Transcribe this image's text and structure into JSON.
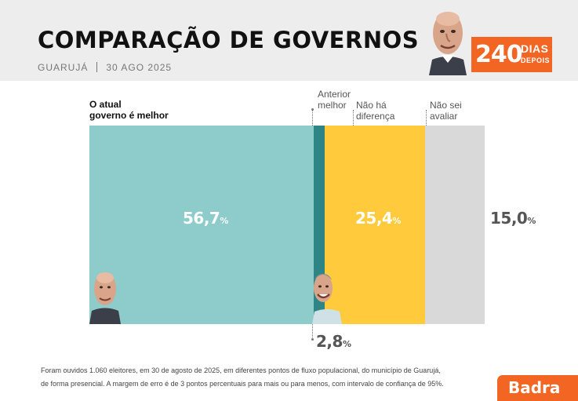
{
  "header": {
    "title": "COMPARAÇÃO DE GOVERNOS",
    "location": "GUARUJÁ",
    "date": "30 AGO 2025",
    "badge_number": "240",
    "badge_line1": "DIAS",
    "badge_line2": "DEPOIS"
  },
  "chart_data": {
    "type": "bar",
    "orientation": "stacked-horizontal",
    "categories": [
      "O atual governo é melhor",
      "Anterior melhor",
      "Não há diferença",
      "Não sei avaliar"
    ],
    "values": [
      56.7,
      2.8,
      25.4,
      15.0
    ],
    "unit": "%",
    "colors": [
      "#8ecbcb",
      "#2e8585",
      "#ffcb3c",
      "#d9d9d9"
    ]
  },
  "labels": {
    "cat0": "O atual\ngoverno é melhor",
    "cat1": "Anterior\nmelhor",
    "cat2": "Não há\ndiferença",
    "cat3": "Não sei\navaliar",
    "val0": "56,7",
    "val1": "2,8",
    "val2": "25,4",
    "val3": "15,0",
    "pct": "%"
  },
  "footnote": {
    "line1": "Foram ouvidos 1.060 eleitores, em 30 de agosto de 2025, em diferentes pontos de fluxo populacional, do município de Guarujá,",
    "line2": "de forma presencial. A margem de erro é de 3 pontos percentuais para mais ou para menos, com intervalo de confiança de 95%."
  },
  "brand": "Badra"
}
